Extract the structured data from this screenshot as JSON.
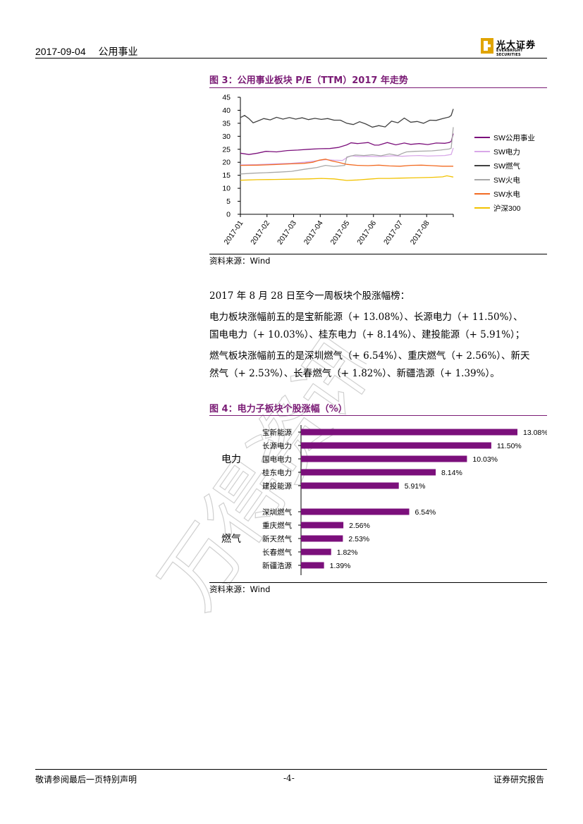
{
  "header": {
    "date": "2017-09-04",
    "sector": "公用事业",
    "logo_cn": "光大证券",
    "logo_en": "EVERBRIGHT SECURITIES"
  },
  "watermark": {
    "text": "万得资讯"
  },
  "figure3": {
    "title": "图 3：公用事业板块 P/E（TTM）2017 年走势",
    "source": "资料来源：Wind",
    "chart_data": {
      "type": "line",
      "title": "公用事业板块 P/E（TTM）2017 年走势",
      "x_labels": [
        "2017-01",
        "2017-02",
        "2017-03",
        "2017-04",
        "2017-05",
        "2017-06",
        "2017-07",
        "2017-08"
      ],
      "y_ticks": [
        "0",
        "5",
        "10",
        "15",
        "20",
        "25",
        "30",
        "35",
        "40",
        "45"
      ],
      "ylim": [
        0,
        45
      ],
      "legend_position": "right",
      "series": [
        {
          "name": "SW公用事业",
          "color": "#7b0f7b",
          "points": [
            [
              0,
              23.5
            ],
            [
              4,
              23
            ],
            [
              8,
              23.5
            ],
            [
              12,
              24.2
            ],
            [
              17,
              24
            ],
            [
              22,
              24.5
            ],
            [
              27,
              24.7
            ],
            [
              32,
              25
            ],
            [
              37,
              25.2
            ],
            [
              42,
              25.3
            ],
            [
              46,
              25.7
            ],
            [
              50,
              26.7
            ],
            [
              52,
              27.5
            ],
            [
              55,
              27.2
            ],
            [
              60,
              27.6
            ],
            [
              63,
              26.6
            ],
            [
              65,
              26.6
            ],
            [
              69,
              27.6
            ],
            [
              73,
              26.7
            ],
            [
              77,
              27.4
            ],
            [
              80,
              26.9
            ],
            [
              84,
              27.2
            ],
            [
              88,
              26.8
            ],
            [
              92,
              27.4
            ],
            [
              96,
              27.3
            ],
            [
              98,
              27.6
            ],
            [
              99,
              28
            ],
            [
              100,
              31
            ]
          ]
        },
        {
          "name": "SW电力",
          "color": "#d8a8e8",
          "points": [
            [
              0,
              19
            ],
            [
              8,
              19.1
            ],
            [
              16,
              19.4
            ],
            [
              24,
              19.6
            ],
            [
              30,
              20
            ],
            [
              36,
              20.6
            ],
            [
              40,
              21
            ],
            [
              44,
              20.8
            ],
            [
              48,
              20.7
            ],
            [
              50,
              21.8
            ],
            [
              52,
              22.5
            ],
            [
              56,
              22.2
            ],
            [
              60,
              22.3
            ],
            [
              64,
              22.2
            ],
            [
              68,
              22.3
            ],
            [
              72,
              22.5
            ],
            [
              76,
              22.3
            ],
            [
              80,
              22.5
            ],
            [
              84,
              22.6
            ],
            [
              88,
              22.4
            ],
            [
              92,
              22.5
            ],
            [
              96,
              22.6
            ],
            [
              99,
              23
            ],
            [
              100,
              25.5
            ]
          ]
        },
        {
          "name": "SW燃气",
          "color": "#404040",
          "points": [
            [
              0,
              37.2
            ],
            [
              2,
              38
            ],
            [
              4,
              36.8
            ],
            [
              6,
              35.2
            ],
            [
              8,
              35.8
            ],
            [
              11,
              36.8
            ],
            [
              14,
              36.3
            ],
            [
              17,
              37.3
            ],
            [
              20,
              36.6
            ],
            [
              23,
              37.2
            ],
            [
              26,
              36.6
            ],
            [
              29,
              37.1
            ],
            [
              32,
              36.4
            ],
            [
              35,
              36.9
            ],
            [
              38,
              36.5
            ],
            [
              41,
              36.8
            ],
            [
              44,
              36.2
            ],
            [
              47,
              36.2
            ],
            [
              50,
              35
            ],
            [
              53,
              34.5
            ],
            [
              56,
              35.6
            ],
            [
              59,
              34.7
            ],
            [
              62,
              33.5
            ],
            [
              65,
              34.1
            ],
            [
              68,
              33.6
            ],
            [
              71,
              35.8
            ],
            [
              74,
              35.2
            ],
            [
              77,
              37
            ],
            [
              80,
              35.4
            ],
            [
              83,
              35.7
            ],
            [
              86,
              35
            ],
            [
              89,
              36.2
            ],
            [
              92,
              36.1
            ],
            [
              95,
              36.8
            ],
            [
              98,
              37.4
            ],
            [
              99,
              38
            ],
            [
              100,
              40.5
            ]
          ]
        },
        {
          "name": "SW火电",
          "color": "#a8a8a8",
          "points": [
            [
              0,
              15.5
            ],
            [
              6,
              15.8
            ],
            [
              12,
              16
            ],
            [
              18,
              16.2
            ],
            [
              24,
              16.5
            ],
            [
              30,
              17.3
            ],
            [
              36,
              18
            ],
            [
              40,
              18.8
            ],
            [
              44,
              18.4
            ],
            [
              49,
              18.8
            ],
            [
              50,
              22
            ],
            [
              54,
              22.8
            ],
            [
              58,
              22.6
            ],
            [
              62,
              22.9
            ],
            [
              66,
              22.5
            ],
            [
              70,
              23.2
            ],
            [
              74,
              22.6
            ],
            [
              76,
              23.4
            ],
            [
              78,
              24
            ],
            [
              82,
              24.2
            ],
            [
              86,
              24.3
            ],
            [
              90,
              24.4
            ],
            [
              94,
              24.7
            ],
            [
              98,
              25.1
            ],
            [
              99,
              25.4
            ],
            [
              100,
              33.5
            ]
          ]
        },
        {
          "name": "SW水电",
          "color": "#f26b22",
          "points": [
            [
              0,
              18.8
            ],
            [
              8,
              18.9
            ],
            [
              16,
              19.1
            ],
            [
              24,
              19.4
            ],
            [
              30,
              19.6
            ],
            [
              34,
              20
            ],
            [
              37,
              20.8
            ],
            [
              40,
              21.2
            ],
            [
              43,
              20.5
            ],
            [
              46,
              20
            ],
            [
              50,
              19.2
            ],
            [
              55,
              18.8
            ],
            [
              60,
              18.7
            ],
            [
              65,
              18.9
            ],
            [
              70,
              18.6
            ],
            [
              75,
              18.5
            ],
            [
              80,
              18.8
            ],
            [
              85,
              18.9
            ],
            [
              90,
              18.7
            ],
            [
              95,
              18.5
            ],
            [
              100,
              18.5
            ]
          ]
        },
        {
          "name": "沪深300",
          "color": "#f2c200",
          "points": [
            [
              0,
              13.1
            ],
            [
              8,
              13.3
            ],
            [
              16,
              13.4
            ],
            [
              24,
              13.5
            ],
            [
              32,
              13.6
            ],
            [
              38,
              13.8
            ],
            [
              44,
              13.6
            ],
            [
              50,
              13
            ],
            [
              55,
              13.2
            ],
            [
              60,
              13.5
            ],
            [
              65,
              13.8
            ],
            [
              70,
              13.8
            ],
            [
              75,
              13.9
            ],
            [
              80,
              14
            ],
            [
              85,
              14.1
            ],
            [
              90,
              14.2
            ],
            [
              95,
              14.4
            ],
            [
              97,
              14.8
            ],
            [
              100,
              14.3
            ]
          ]
        }
      ]
    }
  },
  "body_text": {
    "line1": "2017 年 8 月 28 日至今一周板块个股涨幅榜：",
    "para1_line1": "电力板块涨幅前五的是宝新能源（+ 13.08%）、长源电力（+ 11.50%）、",
    "para1_line2": "国电电力（+ 10.03%）、桂东电力（+ 8.14%）、建投能源（+ 5.91%）；",
    "para2_line1": "燃气板块涨幅前五的是深圳燃气（+ 6.54%）、重庆燃气（+ 2.56%）、新天",
    "para2_line2": "然气（+ 2.53%）、长春燃气（+ 1.82%）、新疆浩源（+ 1.39%）。"
  },
  "figure4": {
    "title": "图 4：电力子板块个股涨幅（%）",
    "source": "资料来源：Wind",
    "chart_data": {
      "type": "bar",
      "orientation": "horizontal",
      "title": "电力子板块个股涨幅（%）",
      "bar_color": "#7b0f7b",
      "groups": [
        {
          "name": "电力",
          "items": [
            {
              "label": "宝新能源",
              "value": 13.08,
              "text": "13.08%"
            },
            {
              "label": "长源电力",
              "value": 11.5,
              "text": "11.50%"
            },
            {
              "label": "国电电力",
              "value": 10.03,
              "text": "10.03%"
            },
            {
              "label": "桂东电力",
              "value": 8.14,
              "text": "8.14%"
            },
            {
              "label": "建投能源",
              "value": 5.91,
              "text": "5.91%"
            }
          ]
        },
        {
          "name": "燃气",
          "items": [
            {
              "label": "深圳燃气",
              "value": 6.54,
              "text": "6.54%"
            },
            {
              "label": "重庆燃气",
              "value": 2.56,
              "text": "2.56%"
            },
            {
              "label": "新天然气",
              "value": 2.53,
              "text": "2.53%"
            },
            {
              "label": "长春燃气",
              "value": 1.82,
              "text": "1.82%"
            },
            {
              "label": "新疆浩源",
              "value": 1.39,
              "text": "1.39%"
            }
          ]
        }
      ],
      "xlim": [
        0,
        13.08
      ]
    }
  },
  "footer": {
    "left": "敬请参阅最后一页特别声明",
    "center": "-4-",
    "right": "证券研究报告"
  }
}
